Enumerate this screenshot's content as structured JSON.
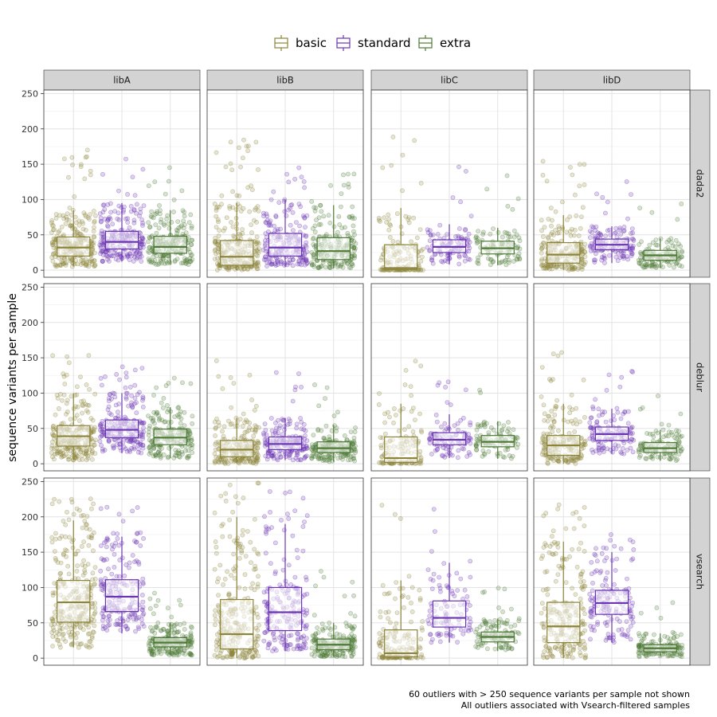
{
  "chart_data": {
    "type": "box",
    "title": "",
    "ylabel": "sequence variants per sample",
    "xlabel": "",
    "ylim": [
      -10,
      255
    ],
    "yticks": [
      0,
      50,
      100,
      150,
      200,
      250
    ],
    "grid": true,
    "legend_position": "top",
    "columns": [
      "libA",
      "libB",
      "libC",
      "libD"
    ],
    "rows": [
      "dada2",
      "deblur",
      "vsearch"
    ],
    "series": [
      {
        "name": "basic",
        "color": "#8c8439"
      },
      {
        "name": "standard",
        "color": "#6a34b2"
      },
      {
        "name": "extra",
        "color": "#4e7a36"
      }
    ],
    "boxes": {
      "dada2": {
        "libA": [
          {
            "q1": 20,
            "median": 32,
            "q3": 47,
            "lower": 5,
            "upper": 85,
            "n": 260,
            "max": 180
          },
          {
            "q1": 30,
            "median": 40,
            "q3": 55,
            "lower": 12,
            "upper": 95,
            "n": 230,
            "max": 160
          },
          {
            "q1": 24,
            "median": 33,
            "q3": 48,
            "lower": 8,
            "upper": 85,
            "n": 220,
            "max": 150
          }
        ],
        "libB": [
          {
            "q1": 7,
            "median": 19,
            "q3": 42,
            "lower": 0,
            "upper": 95,
            "n": 250,
            "max": 190
          },
          {
            "q1": 20,
            "median": 32,
            "q3": 52,
            "lower": 5,
            "upper": 100,
            "n": 200,
            "max": 155
          },
          {
            "q1": 15,
            "median": 27,
            "q3": 46,
            "lower": 3,
            "upper": 92,
            "n": 210,
            "max": 145
          }
        ],
        "libC": [
          {
            "q1": 1,
            "median": 3,
            "q3": 36,
            "lower": 0,
            "upper": 88,
            "n": 150,
            "max": 190
          },
          {
            "q1": 25,
            "median": 33,
            "q3": 43,
            "lower": 8,
            "upper": 65,
            "n": 100,
            "max": 150
          },
          {
            "q1": 23,
            "median": 31,
            "q3": 41,
            "lower": 7,
            "upper": 60,
            "n": 100,
            "max": 142
          }
        ],
        "libD": [
          {
            "q1": 10,
            "median": 22,
            "q3": 39,
            "lower": 0,
            "upper": 78,
            "n": 220,
            "max": 172
          },
          {
            "q1": 29,
            "median": 36,
            "q3": 44,
            "lower": 10,
            "upper": 62,
            "n": 140,
            "max": 140
          },
          {
            "q1": 14,
            "median": 21,
            "q3": 28,
            "lower": 3,
            "upper": 45,
            "n": 130,
            "max": 113
          }
        ]
      },
      "deblur": {
        "libA": [
          {
            "q1": 25,
            "median": 39,
            "q3": 54,
            "lower": 5,
            "upper": 100,
            "n": 250,
            "max": 155
          },
          {
            "q1": 37,
            "median": 48,
            "q3": 62,
            "lower": 15,
            "upper": 100,
            "n": 220,
            "max": 140
          },
          {
            "q1": 27,
            "median": 37,
            "q3": 49,
            "lower": 8,
            "upper": 80,
            "n": 210,
            "max": 122
          }
        ],
        "libB": [
          {
            "q1": 10,
            "median": 20,
            "q3": 33,
            "lower": 0,
            "upper": 65,
            "n": 220,
            "max": 155
          },
          {
            "q1": 20,
            "median": 28,
            "q3": 38,
            "lower": 5,
            "upper": 65,
            "n": 180,
            "max": 138
          },
          {
            "q1": 16,
            "median": 22,
            "q3": 31,
            "lower": 3,
            "upper": 55,
            "n": 190,
            "max": 124
          }
        ],
        "libC": [
          {
            "q1": 2,
            "median": 8,
            "q3": 38,
            "lower": 0,
            "upper": 85,
            "n": 130,
            "max": 146
          },
          {
            "q1": 27,
            "median": 34,
            "q3": 44,
            "lower": 8,
            "upper": 70,
            "n": 100,
            "max": 118
          },
          {
            "q1": 24,
            "median": 31,
            "q3": 40,
            "lower": 7,
            "upper": 60,
            "n": 100,
            "max": 111
          }
        ],
        "libD": [
          {
            "q1": 12,
            "median": 26,
            "q3": 40,
            "lower": 0,
            "upper": 85,
            "n": 200,
            "max": 159
          },
          {
            "q1": 33,
            "median": 42,
            "q3": 52,
            "lower": 14,
            "upper": 78,
            "n": 130,
            "max": 137
          },
          {
            "q1": 16,
            "median": 22,
            "q3": 30,
            "lower": 4,
            "upper": 48,
            "n": 120,
            "max": 109
          }
        ]
      },
      "vsearch": {
        "libA": [
          {
            "q1": 51,
            "median": 79,
            "q3": 110,
            "lower": 15,
            "upper": 195,
            "n": 280,
            "max": 232
          },
          {
            "q1": 66,
            "median": 87,
            "q3": 111,
            "lower": 35,
            "upper": 172,
            "n": 200,
            "max": 216
          },
          {
            "q1": 16,
            "median": 22,
            "q3": 29,
            "lower": 4,
            "upper": 50,
            "n": 230,
            "max": 95
          }
        ],
        "libB": [
          {
            "q1": 13,
            "median": 34,
            "q3": 83,
            "lower": 0,
            "upper": 200,
            "n": 260,
            "max": 248
          },
          {
            "q1": 39,
            "median": 65,
            "q3": 100,
            "lower": 10,
            "upper": 190,
            "n": 200,
            "max": 245
          },
          {
            "q1": 12,
            "median": 19,
            "q3": 27,
            "lower": 2,
            "upper": 50,
            "n": 200,
            "max": 124
          }
        ],
        "libC": [
          {
            "q1": 2,
            "median": 7,
            "q3": 40,
            "lower": 0,
            "upper": 110,
            "n": 160,
            "max": 236
          },
          {
            "q1": 44,
            "median": 57,
            "q3": 81,
            "lower": 22,
            "upper": 135,
            "n": 100,
            "max": 212
          },
          {
            "q1": 23,
            "median": 30,
            "q3": 37,
            "lower": 10,
            "upper": 56,
            "n": 120,
            "max": 122
          }
        ],
        "libD": [
          {
            "q1": 22,
            "median": 45,
            "q3": 79,
            "lower": 0,
            "upper": 165,
            "n": 230,
            "max": 232
          },
          {
            "q1": 62,
            "median": 78,
            "q3": 96,
            "lower": 22,
            "upper": 150,
            "n": 160,
            "max": 175
          },
          {
            "q1": 9,
            "median": 14,
            "q3": 19,
            "lower": 2,
            "upper": 35,
            "n": 150,
            "max": 80
          }
        ]
      }
    },
    "captions": [
      "60 outliers with > 250 sequence variants per sample not shown",
      "All outliers associated with Vsearch-filtered samples"
    ]
  }
}
